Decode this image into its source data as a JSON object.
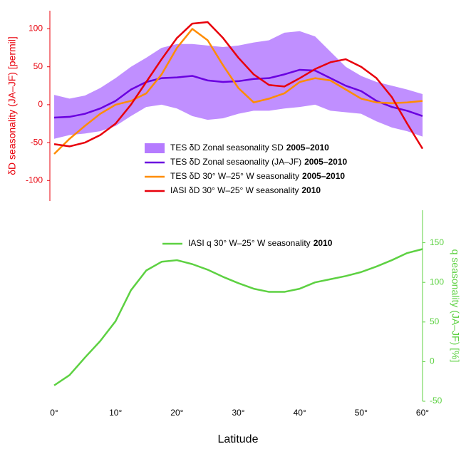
{
  "chart_data": [
    {
      "type": "line",
      "ylabel": "δD seasonality (JA–JF) [permil]",
      "axis_color": "#e8000b",
      "xlim": [
        -0.7,
        60
      ],
      "ylim": [
        -127,
        124
      ],
      "yticks": [
        100,
        50,
        0,
        -50,
        -100
      ],
      "x": [
        0,
        2.5,
        5,
        7.5,
        10,
        12.5,
        15,
        17.5,
        20,
        22.5,
        25,
        27.5,
        30,
        32.5,
        35,
        37.5,
        40,
        42.5,
        45,
        47.5,
        50,
        52.5,
        55,
        57.5,
        60
      ],
      "series": [
        {
          "name": "TES δD Zonal seasonality SD",
          "period": "2005–2010",
          "color": "#b57bff",
          "values": [
            13,
            8,
            12,
            22,
            35,
            50,
            62,
            75,
            80,
            80,
            78,
            76,
            78,
            82,
            85,
            95,
            97,
            90,
            70,
            50,
            38,
            30,
            25,
            20,
            14
          ],
          "lower": [
            -45,
            -40,
            -38,
            -35,
            -28,
            -15,
            -3,
            0,
            -5,
            -15,
            -20,
            -18,
            -12,
            -8,
            -8,
            -5,
            -3,
            0,
            -8,
            -10,
            -12,
            -22,
            -30,
            -35,
            -42
          ]
        },
        {
          "name": "TES δD Zonal sesaonality (JA–JF)",
          "period": "2005–2010",
          "color": "#6a00e0",
          "values": [
            -17,
            -16,
            -12,
            -5,
            5,
            20,
            30,
            35,
            36,
            38,
            32,
            30,
            31,
            34,
            35,
            40,
            46,
            45,
            35,
            25,
            18,
            5,
            -3,
            -8,
            -15
          ]
        },
        {
          "name": "TES δD 30° W–25° W seasonality",
          "period": "2005–2010",
          "color": "#ff8c00",
          "values": [
            -65,
            -45,
            -28,
            -12,
            0,
            5,
            15,
            40,
            75,
            100,
            85,
            52,
            22,
            3,
            8,
            15,
            30,
            35,
            32,
            20,
            8,
            3,
            2,
            3,
            5
          ]
        },
        {
          "name": "IASI δD 30° W–25° W seasonality",
          "period": "2010",
          "color": "#e8000b",
          "values": [
            -52,
            -55,
            -50,
            -40,
            -25,
            0,
            30,
            60,
            88,
            107,
            109,
            88,
            62,
            40,
            26,
            24,
            35,
            47,
            56,
            60,
            50,
            35,
            10,
            -25,
            -58
          ]
        }
      ]
    },
    {
      "type": "line",
      "ylabel": "q seasonality (JA–JF) [%]",
      "xlabel": "Latitude",
      "axis_color": "#5dd142",
      "xlim": [
        -0.7,
        60
      ],
      "ylim": [
        -50,
        191
      ],
      "yticks": [
        150,
        100,
        50,
        0,
        -50
      ],
      "xticks": [
        {
          "value": 0,
          "label": "0°"
        },
        {
          "value": 10,
          "label": "10°"
        },
        {
          "value": 20,
          "label": "20°"
        },
        {
          "value": 30,
          "label": "30°"
        },
        {
          "value": 40,
          "label": "40°"
        },
        {
          "value": 50,
          "label": "50°"
        },
        {
          "value": 60,
          "label": "60°"
        }
      ],
      "x": [
        0,
        2.5,
        5,
        7.5,
        10,
        12.5,
        15,
        17.5,
        20,
        22.5,
        25,
        27.5,
        30,
        32.5,
        35,
        37.5,
        40,
        42.5,
        45,
        47.5,
        50,
        52.5,
        55,
        57.5,
        60
      ],
      "series": [
        {
          "name": "IASI q 30° W–25° W seasonality",
          "period": "2010",
          "color": "#5dd142",
          "values": [
            -30,
            -17,
            5,
            26,
            51,
            90,
            115,
            126,
            128,
            123,
            116,
            107,
            99,
            92,
            88,
            88,
            92,
            100,
            104,
            108,
            113,
            120,
            128,
            137,
            142
          ]
        }
      ]
    }
  ]
}
